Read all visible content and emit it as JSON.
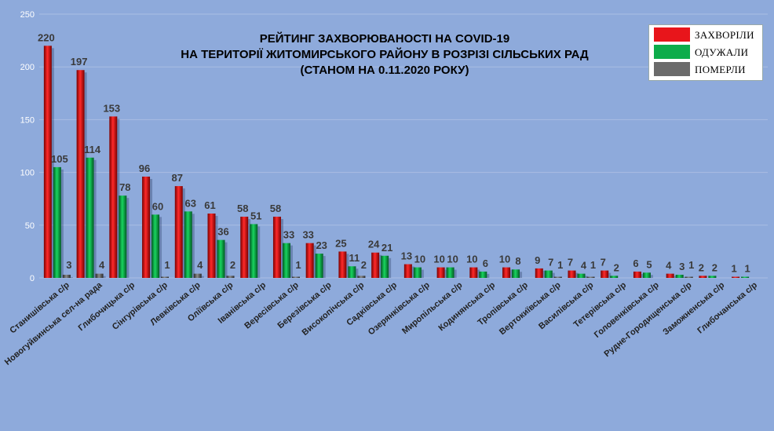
{
  "chart_data": {
    "type": "bar",
    "title_lines": [
      "РЕЙТИНГ ЗАХВОРЮВАНОСТІ НА COVID-19",
      "НА ТЕРИТОРІЇ ЖИТОМИРСЬКОГО РАЙОНУ В РОЗРІЗІ СІЛЬСЬКИХ РАД",
      "(СТАНОМ НА 0.11.2020 РОКУ)"
    ],
    "ylim": [
      0,
      250
    ],
    "yticks": [
      0,
      50,
      100,
      150,
      200,
      250
    ],
    "grid": true,
    "legend_position": "top-right",
    "categories": [
      "Станишівська с/р",
      "Новогуйвинська сел-на рада",
      "Глибочицька с/р",
      "Сінгурівська с/р",
      "Левківська с/р",
      "Оліївська с/р",
      "Іванівська с/р",
      "Вересівська с/р",
      "Березівська с/р",
      "Високопічська с/р",
      "Садківська с/р",
      "Озерянківська с/р",
      "Миропільська с/р",
      "Кодинянська с/р",
      "Тропівська с/р",
      "Вертокиївська с/р",
      "Василівська с/р",
      "Тетерівська с/р",
      "Головенківська с/р",
      "Рудне-Городищенська с/р",
      "Заможненська с/р",
      "Глибочанська с/р"
    ],
    "series": [
      {
        "name": "ЗАХВОРІЛИ",
        "color": "#e8151b",
        "values": [
          220,
          197,
          153,
          96,
          87,
          61,
          58,
          58,
          33,
          25,
          24,
          13,
          10,
          10,
          10,
          9,
          7,
          7,
          6,
          4,
          2,
          1
        ]
      },
      {
        "name": "ОДУЖАЛИ",
        "color": "#0dac4b",
        "values": [
          105,
          114,
          78,
          60,
          63,
          36,
          51,
          33,
          23,
          11,
          21,
          10,
          10,
          6,
          8,
          7,
          4,
          2,
          5,
          3,
          2,
          1
        ]
      },
      {
        "name": "ПОМЕРЛИ",
        "color": "#6b6b6b",
        "values": [
          3,
          4,
          null,
          1,
          4,
          2,
          null,
          1,
          null,
          2,
          null,
          null,
          null,
          null,
          null,
          1,
          1,
          null,
          null,
          1,
          null,
          null
        ]
      }
    ]
  }
}
